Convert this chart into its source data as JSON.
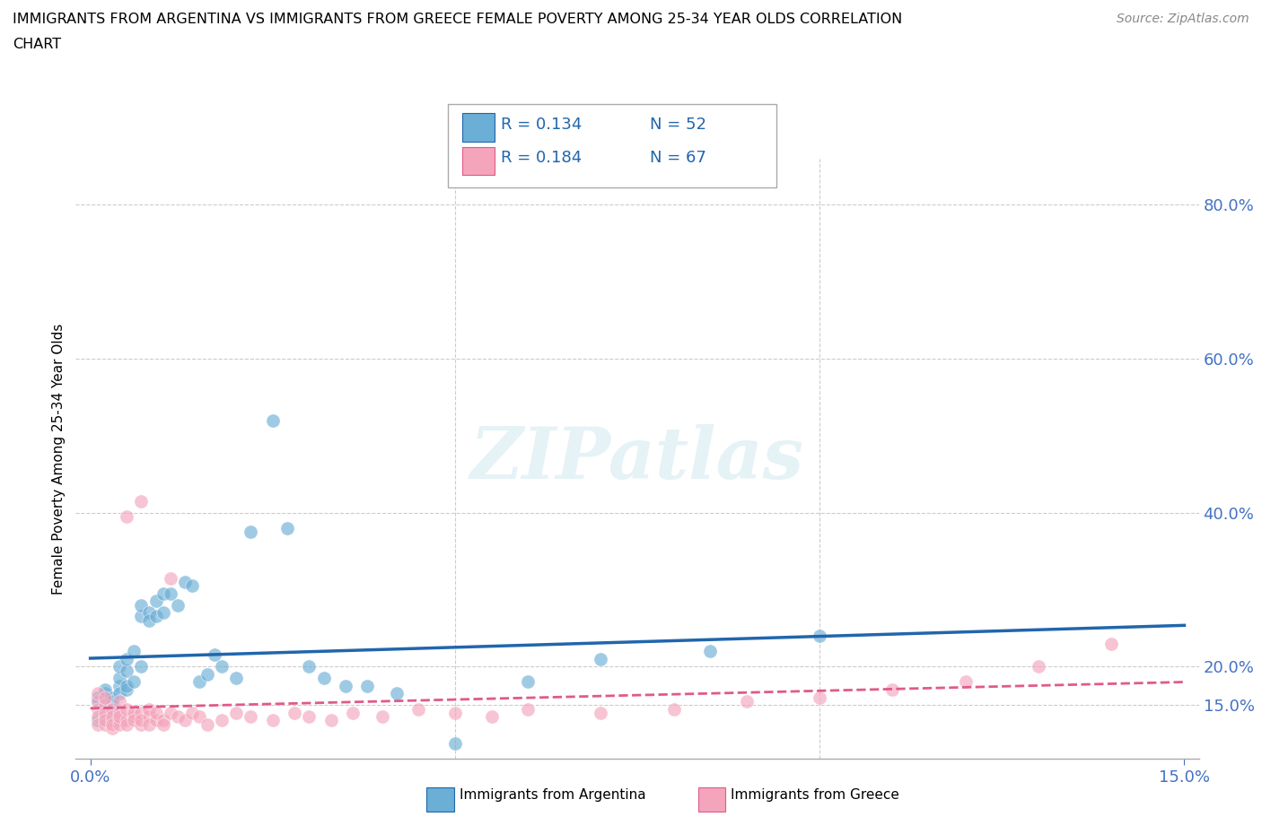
{
  "title_line1": "IMMIGRANTS FROM ARGENTINA VS IMMIGRANTS FROM GREECE FEMALE POVERTY AMONG 25-34 YEAR OLDS CORRELATION",
  "title_line2": "CHART",
  "source_text": "Source: ZipAtlas.com",
  "ylabel_label": "Female Poverty Among 25-34 Year Olds",
  "legend_r_argentina": "R = 0.134",
  "legend_n_argentina": "N = 52",
  "legend_r_greece": "R = 0.184",
  "legend_n_greece": "N = 67",
  "color_argentina": "#6baed6",
  "color_greece": "#f4a5bc",
  "color_trendline_argentina": "#2166ac",
  "color_trendline_greece": "#e05a8a",
  "background_color": "#ffffff",
  "watermark_text": "ZIPatlas",
  "argentina_x": [
    0.001,
    0.001,
    0.001,
    0.002,
    0.002,
    0.002,
    0.002,
    0.003,
    0.003,
    0.003,
    0.003,
    0.004,
    0.004,
    0.004,
    0.004,
    0.005,
    0.005,
    0.005,
    0.005,
    0.006,
    0.006,
    0.007,
    0.007,
    0.007,
    0.008,
    0.008,
    0.009,
    0.009,
    0.01,
    0.01,
    0.011,
    0.012,
    0.013,
    0.014,
    0.015,
    0.016,
    0.017,
    0.018,
    0.02,
    0.022,
    0.025,
    0.027,
    0.03,
    0.032,
    0.035,
    0.038,
    0.042,
    0.05,
    0.06,
    0.07,
    0.085,
    0.1
  ],
  "argentina_y": [
    0.155,
    0.16,
    0.13,
    0.165,
    0.155,
    0.145,
    0.17,
    0.16,
    0.155,
    0.13,
    0.14,
    0.175,
    0.165,
    0.185,
    0.2,
    0.17,
    0.175,
    0.195,
    0.21,
    0.18,
    0.22,
    0.2,
    0.265,
    0.28,
    0.27,
    0.26,
    0.285,
    0.265,
    0.295,
    0.27,
    0.295,
    0.28,
    0.31,
    0.305,
    0.18,
    0.19,
    0.215,
    0.2,
    0.185,
    0.375,
    0.52,
    0.38,
    0.2,
    0.185,
    0.175,
    0.175,
    0.165,
    0.1,
    0.18,
    0.21,
    0.22,
    0.24
  ],
  "greece_x": [
    0.001,
    0.001,
    0.001,
    0.001,
    0.001,
    0.002,
    0.002,
    0.002,
    0.002,
    0.002,
    0.002,
    0.003,
    0.003,
    0.003,
    0.003,
    0.003,
    0.004,
    0.004,
    0.004,
    0.004,
    0.004,
    0.005,
    0.005,
    0.005,
    0.005,
    0.006,
    0.006,
    0.006,
    0.007,
    0.007,
    0.007,
    0.007,
    0.008,
    0.008,
    0.008,
    0.009,
    0.009,
    0.01,
    0.01,
    0.011,
    0.011,
    0.012,
    0.013,
    0.014,
    0.015,
    0.016,
    0.018,
    0.02,
    0.022,
    0.025,
    0.028,
    0.03,
    0.033,
    0.036,
    0.04,
    0.045,
    0.05,
    0.055,
    0.06,
    0.07,
    0.08,
    0.09,
    0.1,
    0.11,
    0.12,
    0.13,
    0.14
  ],
  "greece_y": [
    0.155,
    0.145,
    0.135,
    0.125,
    0.165,
    0.15,
    0.135,
    0.14,
    0.125,
    0.13,
    0.16,
    0.13,
    0.12,
    0.145,
    0.135,
    0.125,
    0.13,
    0.14,
    0.125,
    0.135,
    0.155,
    0.13,
    0.125,
    0.145,
    0.395,
    0.135,
    0.14,
    0.13,
    0.125,
    0.14,
    0.13,
    0.415,
    0.135,
    0.125,
    0.145,
    0.13,
    0.14,
    0.13,
    0.125,
    0.14,
    0.315,
    0.135,
    0.13,
    0.14,
    0.135,
    0.125,
    0.13,
    0.14,
    0.135,
    0.13,
    0.14,
    0.135,
    0.13,
    0.14,
    0.135,
    0.145,
    0.14,
    0.135,
    0.145,
    0.14,
    0.145,
    0.155,
    0.16,
    0.17,
    0.18,
    0.2,
    0.23
  ],
  "xlim": [
    -0.002,
    0.152
  ],
  "ylim": [
    0.08,
    0.86
  ],
  "yticks": [
    0.15,
    0.2,
    0.4,
    0.6,
    0.8
  ],
  "ytick_labels": [
    "15.0%",
    "20.0%",
    "40.0%",
    "60.0%",
    "80.0%"
  ],
  "xticks": [
    0.0,
    0.15
  ],
  "xtick_labels": [
    "0.0%",
    "15.0%"
  ]
}
